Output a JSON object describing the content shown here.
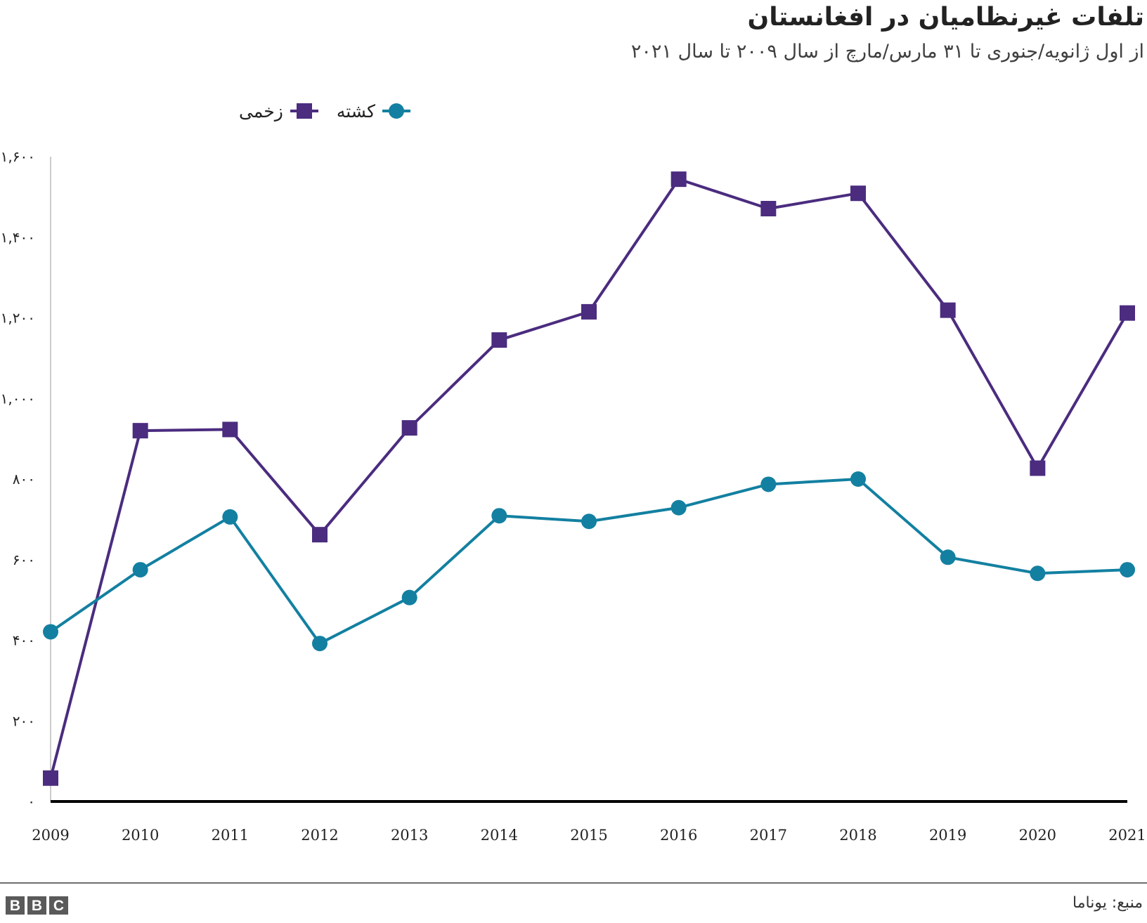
{
  "header": {
    "title": "تلفات غیرنظامیان در افغانستان",
    "subtitle": "از اول ژانویه/جنوری تا ۳۱ مارس/مارچ از سال ۲۰۰۹ تا سال ۲۰۲۱"
  },
  "legend": {
    "wounded_label": "زخمی",
    "killed_label": "کشته"
  },
  "footer": {
    "source": "منبع: یوناما",
    "logo_letters": [
      "B",
      "B",
      "C"
    ]
  },
  "colors": {
    "wounded": "#4b2c7f",
    "killed": "#1380a1",
    "axis": "#000000",
    "y_axis_line": "#cccccc",
    "footer_line": "#6e6e6e"
  },
  "chart_data": {
    "type": "line",
    "title": "تلفات غیرنظامیان در افغانستان",
    "subtitle": "از اول ژانویه/جنوری تا ۳۱ مارس/مارچ از سال ۲۰۰۹ تا سال ۲۰۲۱",
    "xlabel": "",
    "ylabel": "",
    "x": [
      "2009",
      "2010",
      "2011",
      "2012",
      "2013",
      "2014",
      "2015",
      "2016",
      "2017",
      "2018",
      "2019",
      "2020",
      "2021"
    ],
    "series": [
      {
        "name": "زخمی",
        "marker": "square",
        "color": "#4b2c7f",
        "values": [
          58,
          920,
          923,
          662,
          927,
          1145,
          1215,
          1544,
          1471,
          1509,
          1219,
          827,
          1212
        ]
      },
      {
        "name": "کشته",
        "marker": "circle",
        "color": "#1380a1",
        "values": [
          421,
          575,
          706,
          392,
          506,
          709,
          695,
          729,
          787,
          800,
          606,
          566,
          575
        ]
      }
    ],
    "ylim": [
      0,
      1600
    ],
    "y_ticks": [
      0,
      200,
      400,
      600,
      800,
      1000,
      1200,
      1400,
      1600
    ],
    "y_tick_labels": [
      "۰",
      "۲۰۰",
      "۴۰۰",
      "۶۰۰",
      "۸۰۰",
      "۱,۰۰۰",
      "۱,۲۰۰",
      "۱,۴۰۰",
      "۱,۶۰۰"
    ],
    "grid": false,
    "legend_position": "top"
  }
}
